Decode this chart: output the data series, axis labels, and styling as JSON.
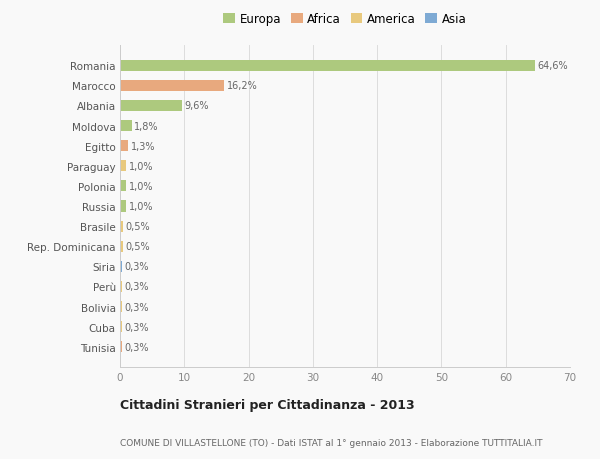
{
  "countries": [
    "Romania",
    "Marocco",
    "Albania",
    "Moldova",
    "Egitto",
    "Paraguay",
    "Polonia",
    "Russia",
    "Brasile",
    "Rep. Dominicana",
    "Siria",
    "Perù",
    "Bolivia",
    "Cuba",
    "Tunisia"
  ],
  "values": [
    64.6,
    16.2,
    9.6,
    1.8,
    1.3,
    1.0,
    1.0,
    1.0,
    0.5,
    0.5,
    0.3,
    0.3,
    0.3,
    0.3,
    0.3
  ],
  "labels": [
    "64,6%",
    "16,2%",
    "9,6%",
    "1,8%",
    "1,3%",
    "1,0%",
    "1,0%",
    "1,0%",
    "0,5%",
    "0,5%",
    "0,3%",
    "0,3%",
    "0,3%",
    "0,3%",
    "0,3%"
  ],
  "continents": [
    "Europa",
    "Africa",
    "Europa",
    "Europa",
    "Africa",
    "America",
    "Europa",
    "Europa",
    "America",
    "America",
    "Asia",
    "America",
    "America",
    "America",
    "Africa"
  ],
  "continent_colors": {
    "Europa": "#adc97e",
    "Africa": "#e8a97e",
    "America": "#e8c97e",
    "Asia": "#7eaad4"
  },
  "legend_entries": [
    "Europa",
    "Africa",
    "America",
    "Asia"
  ],
  "title": "Cittadini Stranieri per Cittadinanza - 2013",
  "subtitle": "COMUNE DI VILLASTELLONE (TO) - Dati ISTAT al 1° gennaio 2013 - Elaborazione TUTTITALIA.IT",
  "xlim": [
    0,
    70
  ],
  "xticks": [
    0,
    10,
    20,
    30,
    40,
    50,
    60,
    70
  ],
  "background_color": "#f9f9f9",
  "bar_height": 0.55,
  "grid_color": "#dddddd"
}
